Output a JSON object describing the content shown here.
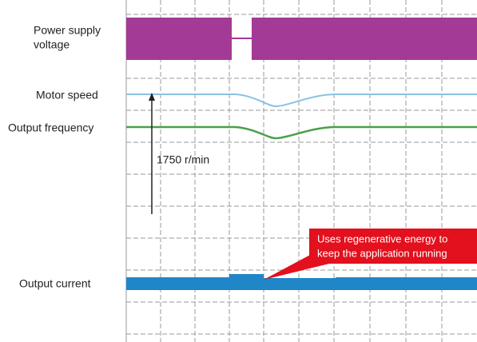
{
  "labels": {
    "power_supply_voltage": [
      "Power supply",
      "voltage"
    ],
    "motor_speed": "Motor speed",
    "output_frequency": "Output frequency",
    "output_current": "Output current"
  },
  "annotations": {
    "speed_scale": "1750 r/min",
    "callout": [
      "Uses regenerative energy to",
      "keep the application running"
    ]
  }
}
